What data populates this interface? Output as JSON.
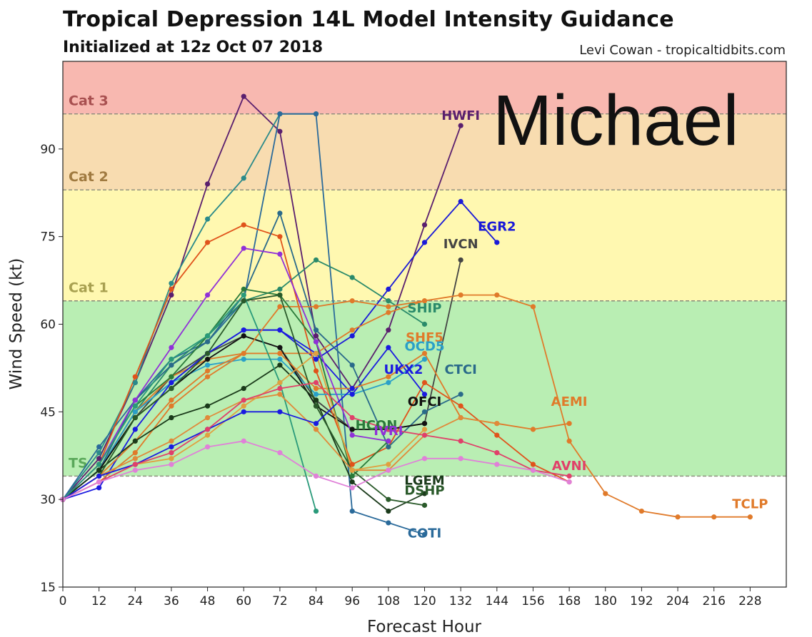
{
  "header": {
    "title": "Tropical Depression 14L Model Intensity Guidance",
    "subtitle": "Initialized at 12z Oct 07 2018",
    "credit": "Levi Cowan - tropicaltidbits.com",
    "overlay_text": "Michael"
  },
  "chart_data": {
    "type": "line",
    "title": "Tropical Depression 14L Model Intensity Guidance",
    "subtitle": "Initialized at 12z Oct 07 2018",
    "xlabel": "Forecast Hour",
    "ylabel": "Wind Speed (kt)",
    "xlim": [
      0,
      240
    ],
    "ylim": [
      15,
      105
    ],
    "xticks": [
      0,
      12,
      24,
      36,
      48,
      60,
      72,
      84,
      96,
      108,
      120,
      132,
      144,
      156,
      168,
      180,
      192,
      204,
      216,
      228
    ],
    "yticks": [
      15,
      30,
      45,
      60,
      75,
      90
    ],
    "grid": false,
    "bands": [
      {
        "label": "TS",
        "from": 34,
        "to": 64,
        "color": "#b9eeb3",
        "label_color": "#5aa85a"
      },
      {
        "label": "Cat 1",
        "from": 64,
        "to": 83,
        "color": "#fff8b0",
        "label_color": "#a8a050"
      },
      {
        "label": "Cat 2",
        "from": 83,
        "to": 96,
        "color": "#f8dcb0",
        "label_color": "#a07a40"
      },
      {
        "label": "Cat 3",
        "from": 96,
        "to": 105,
        "color": "#f8b8b0",
        "label_color": "#a85050"
      }
    ],
    "series": [
      {
        "name": "HWFI",
        "color": "#5a1f6e",
        "label_at": [
          132,
          95
        ],
        "x": [
          0,
          12,
          24,
          36,
          48,
          60,
          72,
          84,
          96,
          108,
          120,
          132
        ],
        "y": [
          30,
          37,
          50,
          65,
          84,
          99,
          93,
          58,
          49,
          59,
          77,
          94
        ]
      },
      {
        "name": "",
        "color": "#2a8a8a",
        "x": [
          0,
          12,
          24,
          36,
          48,
          60,
          72,
          84
        ],
        "y": [
          30,
          38,
          50,
          67,
          78,
          85,
          96,
          96
        ]
      },
      {
        "name": "COTI",
        "color": "#2a6a9a",
        "label_at": [
          120,
          23.5
        ],
        "x": [
          0,
          12,
          24,
          36,
          48,
          60,
          72,
          84,
          96,
          108,
          120
        ],
        "y": [
          30,
          39,
          47,
          54,
          57,
          64,
          96,
          96,
          28,
          26,
          24
        ]
      },
      {
        "name": "EGR2",
        "color": "#1a1ad8",
        "label_at": [
          144,
          76
        ],
        "x": [
          0,
          12,
          24,
          36,
          48,
          60,
          72,
          84,
          96,
          108,
          120,
          132,
          144
        ],
        "y": [
          30,
          35,
          45,
          50,
          55,
          59,
          59,
          54,
          58,
          66,
          74,
          81,
          74
        ]
      },
      {
        "name": "IVCN",
        "color": "#444444",
        "label_at": [
          132,
          73
        ],
        "x": [
          0,
          12,
          24,
          36,
          48,
          60,
          72,
          84,
          96,
          108,
          120,
          132
        ],
        "y": [
          30,
          35,
          44,
          51,
          55,
          58,
          56,
          47,
          42,
          42,
          43,
          71
        ]
      },
      {
        "name": "",
        "color": "#e0531b",
        "x": [
          0,
          12,
          24,
          36,
          48,
          60,
          72,
          84,
          96,
          108,
          120,
          132,
          144,
          156,
          168
        ],
        "y": [
          30,
          36,
          51,
          66,
          74,
          77,
          75,
          52,
          36,
          39,
          50,
          46,
          41,
          36,
          33
        ]
      },
      {
        "name": "SHIP",
        "color": "#2a8a6a",
        "label_at": [
          120,
          62
        ],
        "x": [
          0,
          12,
          24,
          36,
          48,
          60,
          72,
          84,
          96,
          108,
          120
        ],
        "y": [
          30,
          35,
          45,
          53,
          58,
          64,
          66,
          71,
          68,
          64,
          60
        ]
      },
      {
        "name": "SHF5",
        "color": "#e07a2a",
        "label_at": [
          120,
          57
        ],
        "x": [
          0,
          12,
          24,
          36,
          48,
          60,
          72,
          84,
          96,
          108,
          120
        ],
        "y": [
          30,
          35,
          45,
          51,
          54,
          55,
          55,
          55,
          59,
          62,
          64
        ]
      },
      {
        "name": "OCD5",
        "color": "#2aa0c8",
        "label_at": [
          120,
          55.5
        ],
        "x": [
          0,
          12,
          24,
          36,
          48,
          60,
          72,
          84,
          96,
          108,
          120
        ],
        "y": [
          30,
          35,
          45,
          50,
          53,
          54,
          54,
          48,
          48,
          50,
          54
        ]
      },
      {
        "name": "UKX2",
        "color": "#1a1ae0",
        "label_at": [
          113,
          51.5
        ],
        "x": [
          0,
          12,
          24,
          36,
          48,
          60,
          72,
          84,
          96,
          108,
          120
        ],
        "y": [
          30,
          32,
          42,
          50,
          55,
          59,
          59,
          55,
          48,
          56,
          48
        ]
      },
      {
        "name": "CTCI",
        "color": "#2a6a8a",
        "label_at": [
          132,
          51.5
        ],
        "x": [
          0,
          12,
          24,
          36,
          48,
          60,
          72,
          84,
          96,
          108,
          120,
          132
        ],
        "y": [
          30,
          35,
          47,
          53,
          57,
          65,
          79,
          59,
          53,
          39,
          45,
          48
        ]
      },
      {
        "name": "OFCI",
        "color": "#111111",
        "label_at": [
          120,
          46
        ],
        "x": [
          0,
          12,
          24,
          36,
          48,
          60,
          72,
          84,
          96,
          108,
          120
        ],
        "y": [
          30,
          35,
          44,
          49,
          54,
          58,
          56,
          46,
          42,
          42,
          43
        ]
      },
      {
        "name": "AEMI",
        "color": "#e07a2a",
        "label_at": [
          168,
          46
        ],
        "x": [
          0,
          12,
          24,
          36,
          48,
          60,
          72,
          84,
          96,
          108,
          120,
          132,
          144,
          156,
          168
        ],
        "y": [
          30,
          34,
          40,
          47,
          52,
          55,
          55,
          49,
          49,
          51,
          55,
          44,
          43,
          42,
          43
        ]
      },
      {
        "name": "TCLP",
        "color": "#e07a2a",
        "label_at": [
          228,
          28.5
        ],
        "x": [
          0,
          12,
          24,
          36,
          48,
          60,
          72,
          84,
          96,
          108,
          120,
          132,
          144,
          156,
          168,
          180,
          192,
          204,
          216,
          228
        ],
        "y": [
          30,
          33,
          38,
          46,
          51,
          55,
          63,
          63,
          64,
          63,
          64,
          65,
          65,
          63,
          40,
          31,
          28,
          27,
          27,
          27
        ]
      },
      {
        "name": "HCON",
        "color": "#2a7a3a",
        "label_at": [
          104,
          42
        ],
        "x": [
          0,
          12,
          24,
          36,
          48,
          60,
          72,
          84,
          96,
          108
        ],
        "y": [
          30,
          36,
          46,
          51,
          58,
          66,
          65,
          57,
          34,
          40
        ]
      },
      {
        "name": "IVRI",
        "color": "#9030d8",
        "label_at": [
          108,
          41
        ],
        "x": [
          0,
          12,
          24,
          36,
          48,
          60,
          72,
          84,
          96,
          108
        ],
        "y": [
          30,
          36,
          47,
          56,
          65,
          73,
          72,
          57,
          41,
          40
        ]
      },
      {
        "name": "LGEM",
        "color": "#1a3a1a",
        "label_at": [
          120,
          32.5
        ],
        "x": [
          0,
          12,
          24,
          36,
          48,
          60,
          72,
          84,
          96,
          108,
          120
        ],
        "y": [
          30,
          35,
          40,
          44,
          46,
          49,
          53,
          47,
          33,
          28,
          31
        ]
      },
      {
        "name": "DSHP",
        "color": "#2a5a2a",
        "label_at": [
          120,
          30.8
        ],
        "x": [
          0,
          12,
          24,
          36,
          48,
          60,
          72,
          84,
          96,
          108,
          120
        ],
        "y": [
          30,
          34,
          44,
          49,
          55,
          64,
          65,
          46,
          35,
          30,
          29
        ]
      },
      {
        "name": "",
        "color": "#2a9a7a",
        "x": [
          0,
          12,
          24,
          36,
          48,
          60,
          72,
          84
        ],
        "y": [
          30,
          36,
          46,
          54,
          58,
          65,
          50,
          28
        ]
      },
      {
        "name": "",
        "color": "#e08a3a",
        "x": [
          0,
          12,
          24,
          36,
          48,
          60,
          72,
          84,
          96,
          108,
          120,
          132,
          144
        ],
        "y": [
          30,
          34,
          37,
          40,
          44,
          47,
          48,
          42,
          35,
          35,
          41,
          44,
          43
        ]
      },
      {
        "name": "",
        "color": "#e0a040",
        "x": [
          0,
          12,
          24,
          36,
          48,
          60,
          72,
          84,
          96,
          108,
          120
        ],
        "y": [
          30,
          33,
          36,
          37,
          41,
          46,
          50,
          55,
          35,
          36,
          42
        ]
      },
      {
        "name": "",
        "color": "#1a1ae0",
        "x": [
          0,
          12,
          24,
          36,
          48,
          60,
          72,
          84,
          96
        ],
        "y": [
          30,
          34,
          36,
          39,
          42,
          45,
          45,
          43,
          49
        ]
      },
      {
        "name": "AVNI",
        "color": "#e0406a",
        "label_at": [
          168,
          35
        ],
        "x": [
          0,
          12,
          24,
          36,
          48,
          60,
          72,
          84,
          96,
          108,
          120,
          132,
          144,
          156,
          168
        ],
        "y": [
          30,
          33,
          36,
          38,
          42,
          47,
          49,
          50,
          44,
          42,
          41,
          40,
          38,
          35,
          34
        ]
      },
      {
        "name": "",
        "color": "#e080d8",
        "x": [
          0,
          12,
          24,
          36,
          48,
          60,
          72,
          84,
          96,
          108,
          120,
          132,
          144,
          156,
          168
        ],
        "y": [
          30,
          33,
          35,
          36,
          39,
          40,
          38,
          34,
          32,
          35,
          37,
          37,
          36,
          35,
          33
        ]
      }
    ]
  }
}
